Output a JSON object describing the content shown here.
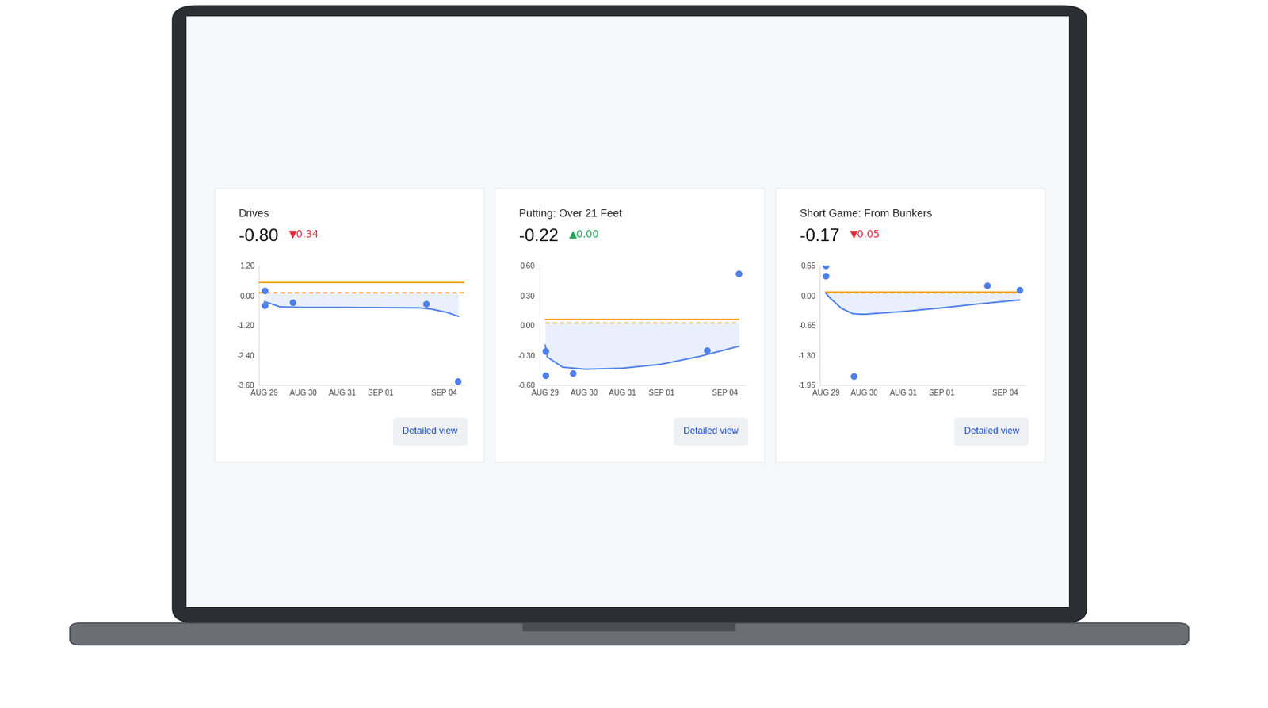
{
  "chart_data": [
    {
      "type": "line",
      "title": "Drives",
      "score": "-0.80",
      "change": {
        "label": "▼0.34",
        "color": "#e5283a"
      },
      "button": "Detailed view",
      "xlim": [
        -0.15,
        5.15
      ],
      "xticks": [
        {
          "value": 0,
          "label": "AUG 29"
        },
        {
          "value": 1,
          "label": "AUG 30"
        },
        {
          "value": 2,
          "label": "AUG 31"
        },
        {
          "value": 3,
          "label": "SEP 01"
        },
        {
          "value": 4.63,
          "label": "SEP 04"
        }
      ],
      "ylim": [
        -3.6,
        1.2
      ],
      "yticks": [
        {
          "value": 1.2,
          "label": "1.20"
        },
        {
          "value": 0,
          "label": "0.00"
        },
        {
          "value": -1.2,
          "label": "-1.20"
        },
        {
          "value": -2.4,
          "label": "-2.40"
        },
        {
          "value": -3.6,
          "label": "-3.60"
        }
      ],
      "tick_labels": true,
      "grid": false,
      "series": [
        {
          "type": "line",
          "color": "#f5a623",
          "line_style": "solid",
          "x": [
            -0.15,
            5.15
          ],
          "values": [
            0.52,
            0.52
          ]
        },
        {
          "type": "line",
          "color": "#f5a623",
          "line_style": "dashed",
          "x": [
            -0.15,
            5.15
          ],
          "values": [
            0.1,
            0.1
          ]
        },
        {
          "type": "area",
          "color": "#4f7fe8",
          "x": [
            0,
            0.4,
            1,
            2,
            3,
            4,
            4.3,
            4.7,
            5
          ],
          "values": [
            -0.25,
            -0.46,
            -0.48,
            -0.48,
            -0.49,
            -0.5,
            -0.55,
            -0.68,
            -0.84
          ]
        },
        {
          "type": "scatter",
          "color": "#4f7fe8",
          "x": [
            0,
            0,
            0.73,
            4.16,
            4.98
          ],
          "values": [
            0.19,
            -0.4,
            -0.28,
            -0.34,
            -3.44
          ]
        }
      ]
    },
    {
      "type": "line",
      "title": "Putting: Over 21 Feet",
      "score": "-0.22",
      "change": {
        "label": "▲0.00",
        "color": "#22a559"
      },
      "button": "Detailed view",
      "xlim": [
        -0.15,
        5.15
      ],
      "xticks": [
        {
          "value": 0,
          "label": "AUG 29"
        },
        {
          "value": 1,
          "label": "AUG 30"
        },
        {
          "value": 2,
          "label": "AUG 31"
        },
        {
          "value": 3,
          "label": "SEP 01"
        },
        {
          "value": 4.63,
          "label": "SEP 04"
        }
      ],
      "ylim": [
        -0.6,
        0.6
      ],
      "yticks": [
        {
          "value": 0.6,
          "label": "0.60"
        },
        {
          "value": 0.3,
          "label": "0.30"
        },
        {
          "value": 0,
          "label": "0.00"
        },
        {
          "value": -0.3,
          "label": "-0.30"
        },
        {
          "value": -0.6,
          "label": "-0.60"
        }
      ],
      "tick_labels": true,
      "grid": false,
      "series": [
        {
          "type": "line",
          "color": "#f5a623",
          "line_style": "solid",
          "x": [
            0,
            5
          ],
          "values": [
            0.06,
            0.06
          ]
        },
        {
          "type": "line",
          "color": "#f5a623",
          "line_style": "dashed",
          "x": [
            0,
            5
          ],
          "values": [
            0.02,
            0.02
          ]
        },
        {
          "type": "area",
          "color": "#4f7fe8",
          "x": [
            0,
            0.06,
            0.45,
            1.04,
            2,
            3,
            4,
            4.6,
            5
          ],
          "values": [
            -0.2,
            -0.32,
            -0.42,
            -0.44,
            -0.43,
            -0.39,
            -0.31,
            -0.25,
            -0.21
          ]
        },
        {
          "type": "scatter",
          "color": "#4f7fe8",
          "x": [
            0,
            0,
            0.71,
            4.17,
            5
          ],
          "values": [
            -0.26,
            -0.5,
            -0.48,
            -0.25,
            0.52
          ]
        }
      ]
    },
    {
      "type": "line",
      "title": "Short Game: From Bunkers",
      "score": "-0.17",
      "change": {
        "label": "▼0.05",
        "color": "#e5283a"
      },
      "button": "Detailed view",
      "xlim": [
        -0.15,
        5.15
      ],
      "xticks": [
        {
          "value": 0,
          "label": "AUG 29"
        },
        {
          "value": 1,
          "label": "AUG 30"
        },
        {
          "value": 2,
          "label": "AUG 31"
        },
        {
          "value": 3,
          "label": "SEP 01"
        },
        {
          "value": 4.63,
          "label": "SEP 04"
        }
      ],
      "ylim": [
        -1.95,
        0.65
      ],
      "yticks": [
        {
          "value": 0.65,
          "label": "0.65"
        },
        {
          "value": 0,
          "label": "0.00"
        },
        {
          "value": -0.65,
          "label": "-0.65"
        },
        {
          "value": -1.3,
          "label": "-1.30"
        },
        {
          "value": -1.95,
          "label": "-1.95"
        }
      ],
      "tick_labels": true,
      "grid": false,
      "series": [
        {
          "type": "line",
          "color": "#f5a623",
          "line_style": "solid",
          "x": [
            0,
            5
          ],
          "values": [
            0.08,
            0.08
          ]
        },
        {
          "type": "line",
          "color": "#f5a623",
          "line_style": "dashed",
          "x": [
            0,
            5
          ],
          "values": [
            0.06,
            0.06
          ]
        },
        {
          "type": "area",
          "color": "#4f7fe8",
          "x": [
            0,
            0.1,
            0.4,
            0.7,
            1,
            2,
            3,
            4,
            5
          ],
          "values": [
            0.05,
            -0.05,
            -0.28,
            -0.4,
            -0.41,
            -0.35,
            -0.27,
            -0.18,
            -0.1
          ]
        },
        {
          "type": "scatter",
          "color": "#4f7fe8",
          "x": [
            0,
            0,
            0.71,
            4.16,
            5
          ],
          "values": [
            0.65,
            0.43,
            -1.76,
            0.22,
            0.12
          ]
        }
      ]
    }
  ]
}
